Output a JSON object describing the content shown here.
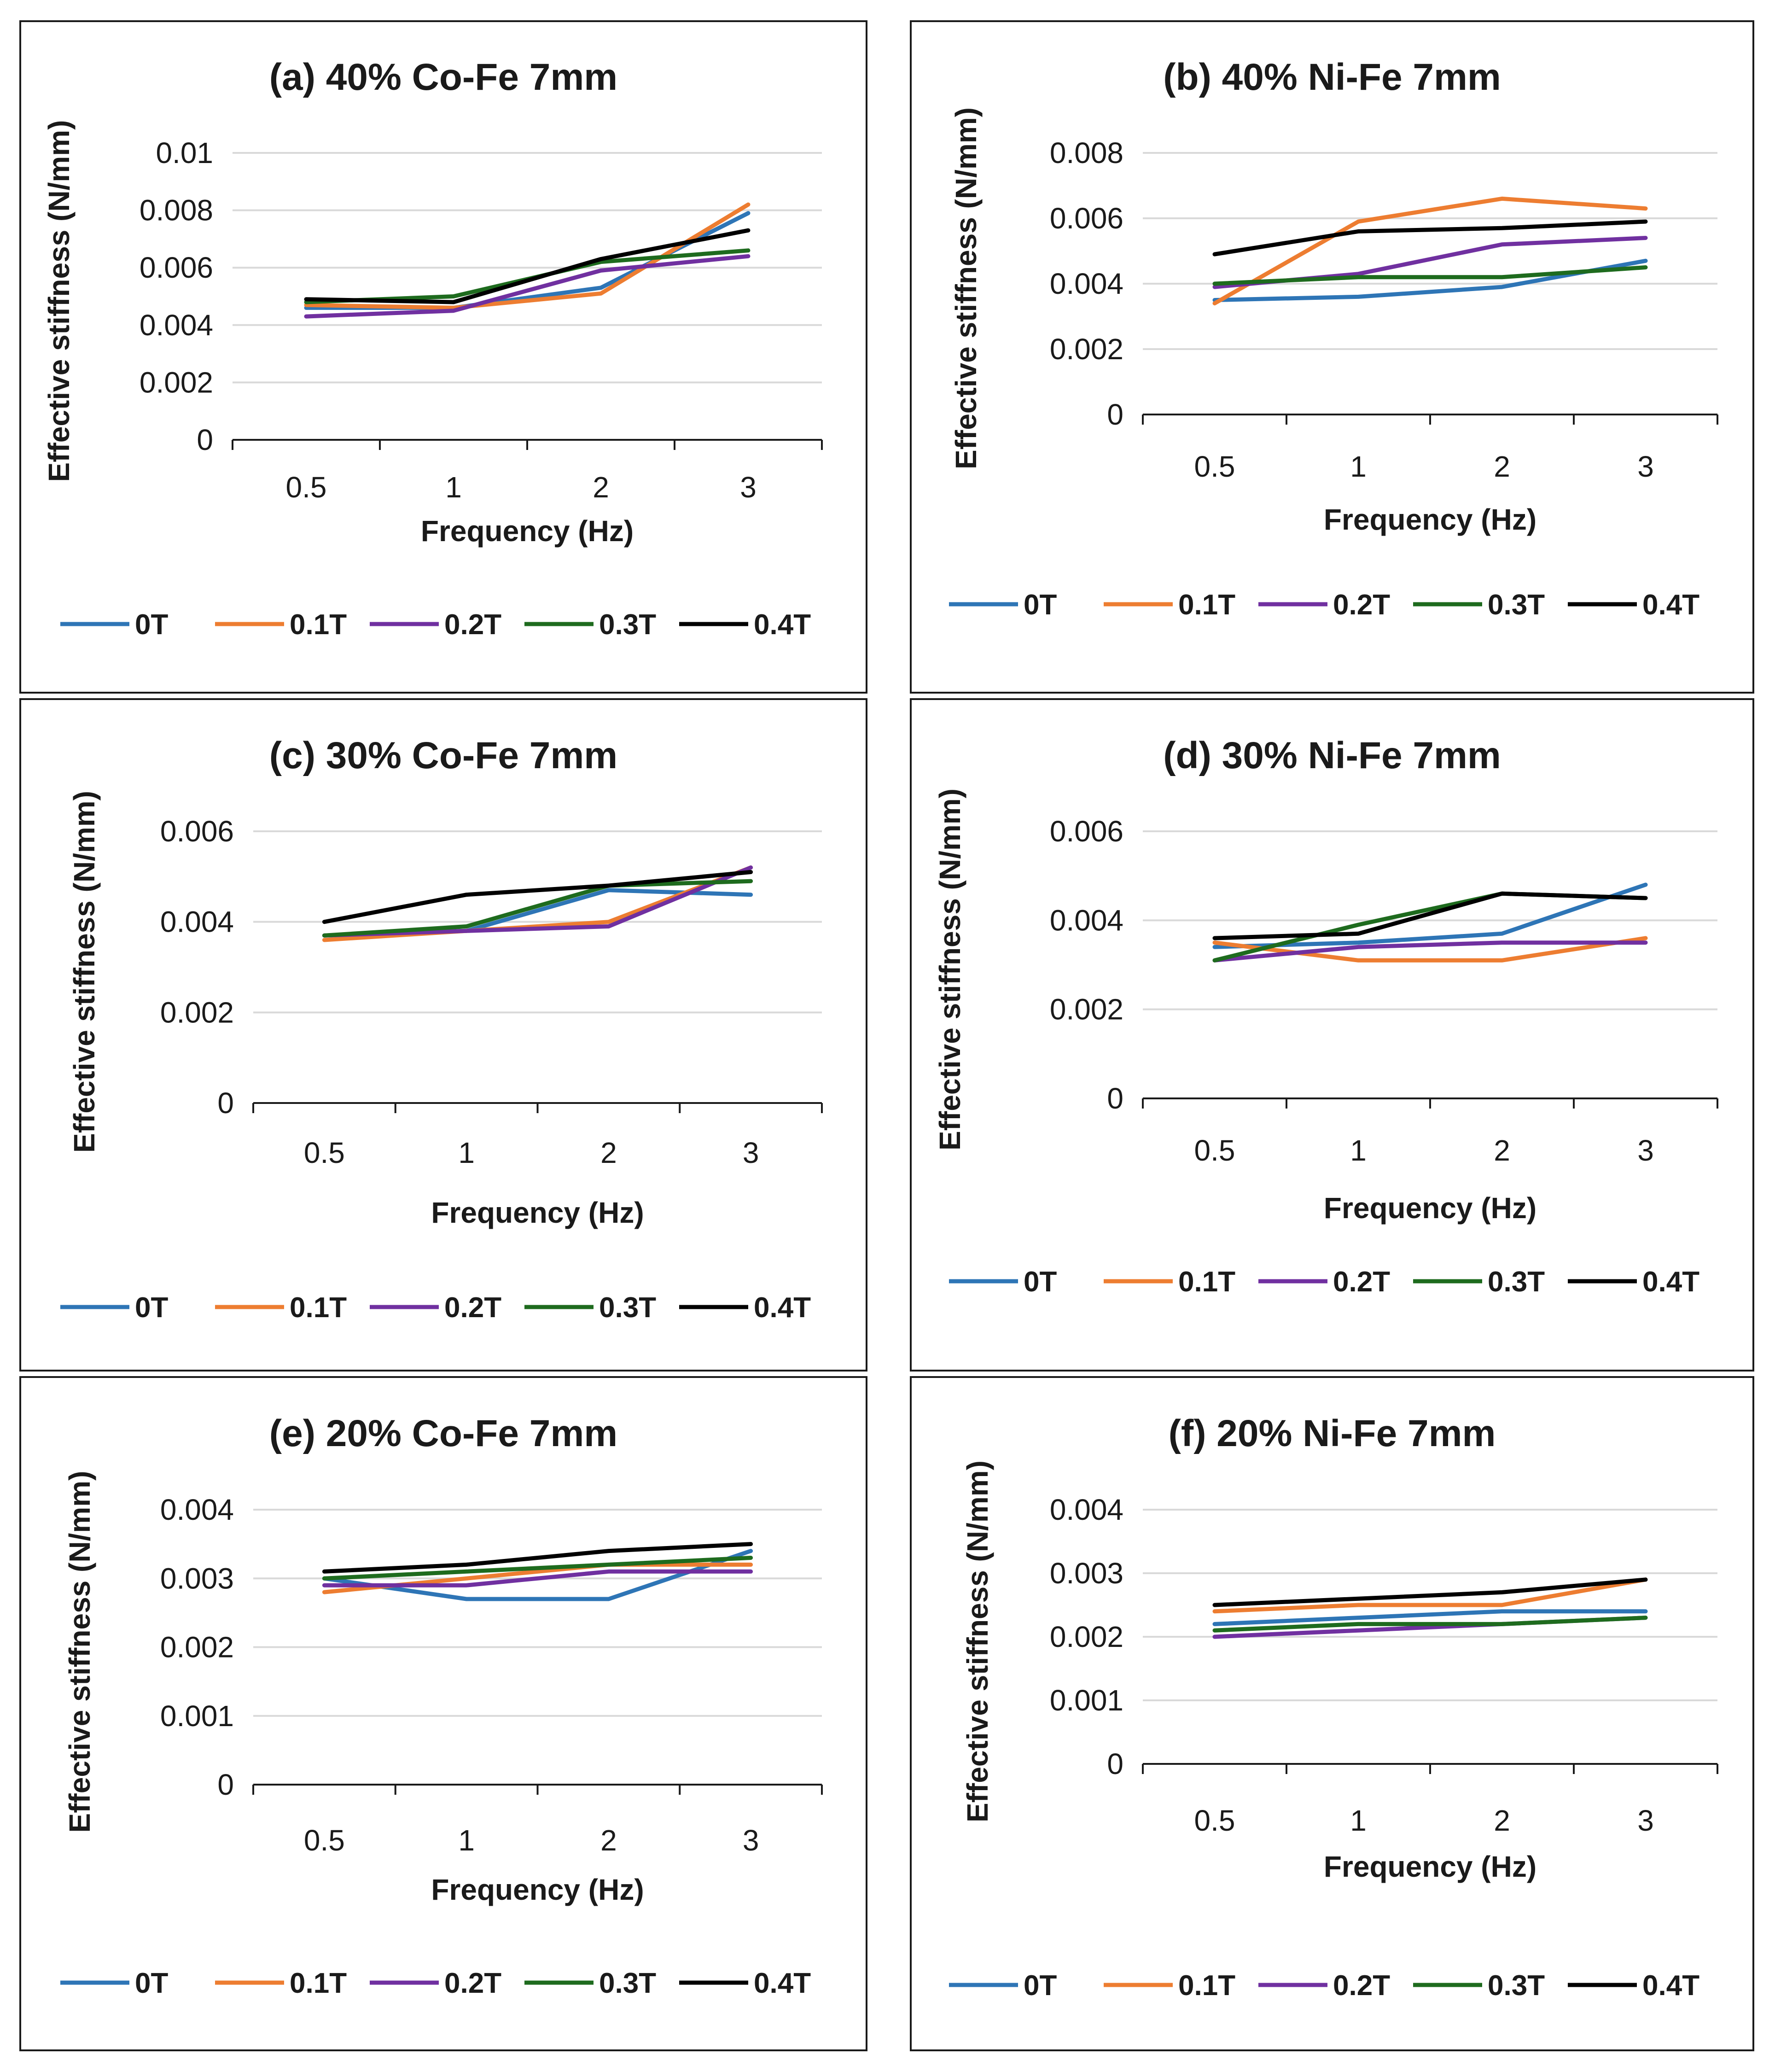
{
  "chart_data": [
    {
      "type": "line",
      "title": "(a) 40% Co-Fe 7mm",
      "xlabel": "Frequency (Hz)",
      "ylabel": "Effective stiffness (N/mm)",
      "categories": [
        "0.5",
        "1",
        "2",
        "3"
      ],
      "yticks": [
        "0",
        "0.002",
        "0.004",
        "0.006",
        "0.008",
        "0.01"
      ],
      "ylim": [
        0,
        0.01
      ],
      "grid": true,
      "legend": "bottom",
      "series": [
        {
          "name": "0T",
          "color": "#2E75B6",
          "values": [
            0.0046,
            0.0046,
            0.0053,
            0.0079
          ]
        },
        {
          "name": "0.1T",
          "color": "#ED7D31",
          "values": [
            0.0047,
            0.0046,
            0.0051,
            0.0082
          ]
        },
        {
          "name": "0.2T",
          "color": "#7030A0",
          "values": [
            0.0043,
            0.0045,
            0.0059,
            0.0064
          ]
        },
        {
          "name": "0.3T",
          "color": "#1E6B1E",
          "values": [
            0.0048,
            0.005,
            0.0062,
            0.0066
          ]
        },
        {
          "name": "0.4T",
          "color": "#000000",
          "values": [
            0.0049,
            0.0048,
            0.0063,
            0.0073
          ]
        }
      ]
    },
    {
      "type": "line",
      "title": "(b) 40% Ni-Fe 7mm",
      "xlabel": "Frequency (Hz)",
      "ylabel": "Effective stiffness (N/mm)",
      "categories": [
        "0.5",
        "1",
        "2",
        "3"
      ],
      "yticks": [
        "0",
        "0.002",
        "0.004",
        "0.006",
        "0.008"
      ],
      "ylim": [
        0,
        0.008
      ],
      "grid": true,
      "legend": "bottom",
      "series": [
        {
          "name": "0T",
          "color": "#2E75B6",
          "values": [
            0.0035,
            0.0036,
            0.0039,
            0.0047
          ]
        },
        {
          "name": "0.1T",
          "color": "#ED7D31",
          "values": [
            0.0034,
            0.0059,
            0.0066,
            0.0063
          ]
        },
        {
          "name": "0.2T",
          "color": "#7030A0",
          "values": [
            0.0039,
            0.0043,
            0.0052,
            0.0054
          ]
        },
        {
          "name": "0.3T",
          "color": "#1E6B1E",
          "values": [
            0.004,
            0.0042,
            0.0042,
            0.0045
          ]
        },
        {
          "name": "0.4T",
          "color": "#000000",
          "values": [
            0.0049,
            0.0056,
            0.0057,
            0.0059
          ]
        }
      ]
    },
    {
      "type": "line",
      "title": "(c) 30% Co-Fe 7mm",
      "xlabel": "Frequency (Hz)",
      "ylabel": "Effective stiffness (N/mm)",
      "categories": [
        "0.5",
        "1",
        "2",
        "3"
      ],
      "yticks": [
        "0",
        "0.002",
        "0.004",
        "0.006"
      ],
      "ylim": [
        0,
        0.006
      ],
      "grid": true,
      "legend": "bottom",
      "series": [
        {
          "name": "0T",
          "color": "#2E75B6",
          "values": [
            0.0037,
            0.0038,
            0.0047,
            0.0046
          ]
        },
        {
          "name": "0.1T",
          "color": "#ED7D31",
          "values": [
            0.0036,
            0.0038,
            0.004,
            0.0052
          ]
        },
        {
          "name": "0.2T",
          "color": "#7030A0",
          "values": [
            0.0037,
            0.0038,
            0.0039,
            0.0052
          ]
        },
        {
          "name": "0.3T",
          "color": "#1E6B1E",
          "values": [
            0.0037,
            0.0039,
            0.0048,
            0.0049
          ]
        },
        {
          "name": "0.4T",
          "color": "#000000",
          "values": [
            0.004,
            0.0046,
            0.0048,
            0.0051
          ]
        }
      ]
    },
    {
      "type": "line",
      "title": "(d) 30% Ni-Fe 7mm",
      "xlabel": "Frequency (Hz)",
      "ylabel": "Effective stiffness (N/mm)",
      "categories": [
        "0.5",
        "1",
        "2",
        "3"
      ],
      "yticks": [
        "0",
        "0.002",
        "0.004",
        "0.006"
      ],
      "ylim": [
        0,
        0.006
      ],
      "grid": true,
      "legend": "bottom",
      "series": [
        {
          "name": "0T",
          "color": "#2E75B6",
          "values": [
            0.0034,
            0.0035,
            0.0037,
            0.0048
          ]
        },
        {
          "name": "0.1T",
          "color": "#ED7D31",
          "values": [
            0.0035,
            0.0031,
            0.0031,
            0.0036
          ]
        },
        {
          "name": "0.2T",
          "color": "#7030A0",
          "values": [
            0.0031,
            0.0034,
            0.0035,
            0.0035
          ]
        },
        {
          "name": "0.3T",
          "color": "#1E6B1E",
          "values": [
            0.0031,
            0.0039,
            0.0046,
            0.0045
          ]
        },
        {
          "name": "0.4T",
          "color": "#000000",
          "values": [
            0.0036,
            0.0037,
            0.0046,
            0.0045
          ]
        }
      ]
    },
    {
      "type": "line",
      "title": "(e) 20% Co-Fe 7mm",
      "xlabel": "Frequency (Hz)",
      "ylabel": "Effective stiffness (N/mm)",
      "categories": [
        "0.5",
        "1",
        "2",
        "3"
      ],
      "yticks": [
        "0",
        "0.001",
        "0.002",
        "0.003",
        "0.004"
      ],
      "ylim": [
        0,
        0.004
      ],
      "grid": true,
      "legend": "bottom",
      "series": [
        {
          "name": "0T",
          "color": "#2E75B6",
          "values": [
            0.003,
            0.0027,
            0.0027,
            0.0034
          ]
        },
        {
          "name": "0.1T",
          "color": "#ED7D31",
          "values": [
            0.0028,
            0.003,
            0.0032,
            0.0032
          ]
        },
        {
          "name": "0.2T",
          "color": "#7030A0",
          "values": [
            0.0029,
            0.0029,
            0.0031,
            0.0031
          ]
        },
        {
          "name": "0.3T",
          "color": "#1E6B1E",
          "values": [
            0.003,
            0.0031,
            0.0032,
            0.0033
          ]
        },
        {
          "name": "0.4T",
          "color": "#000000",
          "values": [
            0.0031,
            0.0032,
            0.0034,
            0.0035
          ]
        }
      ]
    },
    {
      "type": "line",
      "title": "(f) 20% Ni-Fe 7mm",
      "xlabel": "Frequency (Hz)",
      "ylabel": "Effective stiffness (N/mm)",
      "categories": [
        "0.5",
        "1",
        "2",
        "3"
      ],
      "yticks": [
        "0",
        "0.001",
        "0.002",
        "0.003",
        "0.004"
      ],
      "ylim": [
        0,
        0.004
      ],
      "grid": true,
      "legend": "bottom",
      "series": [
        {
          "name": "0T",
          "color": "#2E75B6",
          "values": [
            0.0022,
            0.0023,
            0.0024,
            0.0024
          ]
        },
        {
          "name": "0.1T",
          "color": "#ED7D31",
          "values": [
            0.0024,
            0.0025,
            0.0025,
            0.0029
          ]
        },
        {
          "name": "0.2T",
          "color": "#7030A0",
          "values": [
            0.002,
            0.0021,
            0.0022,
            0.0023
          ]
        },
        {
          "name": "0.3T",
          "color": "#1E6B1E",
          "values": [
            0.0021,
            0.0022,
            0.0022,
            0.0023
          ]
        },
        {
          "name": "0.4T",
          "color": "#000000",
          "values": [
            0.0025,
            0.0026,
            0.0027,
            0.0029
          ]
        }
      ]
    }
  ]
}
